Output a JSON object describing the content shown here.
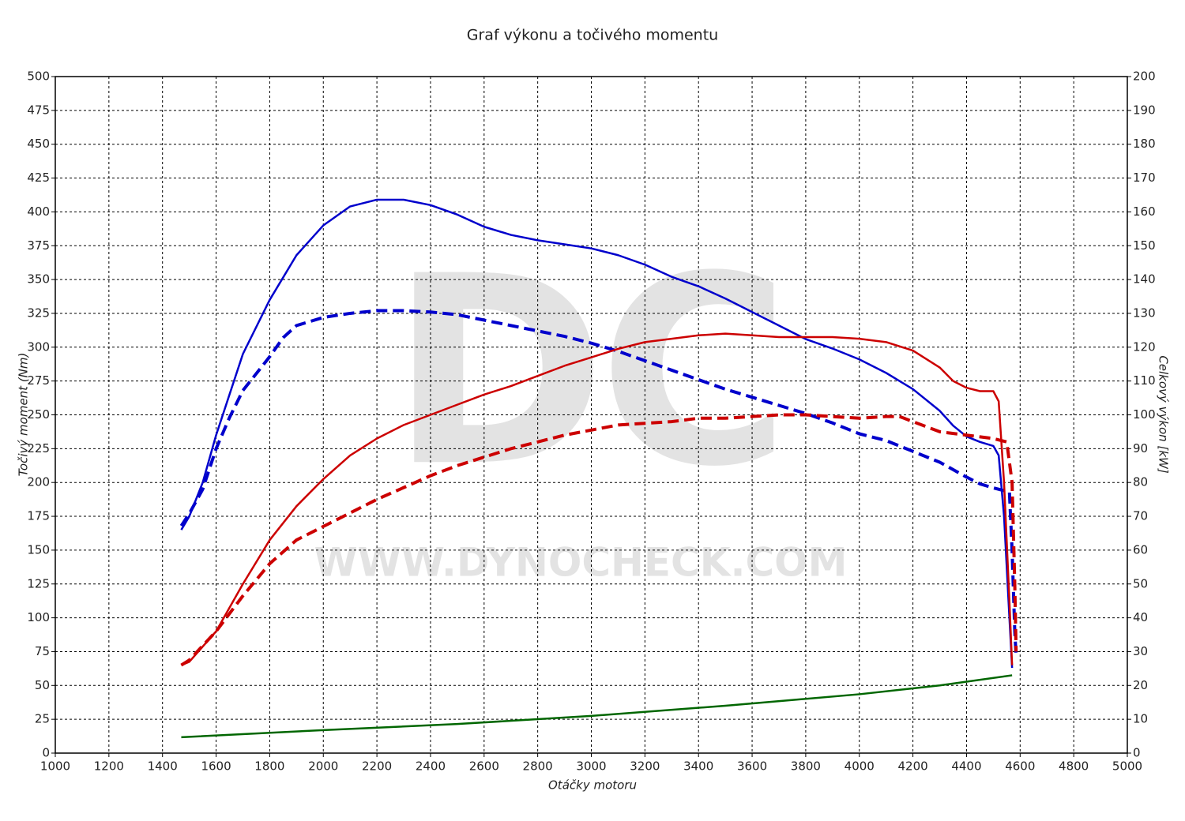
{
  "chart_data": {
    "type": "line",
    "title": "Graf výkonu a točivého momentu",
    "x_label": "Otáčky motoru",
    "y_label": "Točivý moment (Nm)",
    "y2_label": "Celkový výkon [kW]",
    "watermark": {
      "logo": "DC",
      "url": "WWW.DYNOCHECK.COM"
    },
    "grid": true,
    "xlim": [
      1000,
      5000
    ],
    "xticks": [
      1000,
      1200,
      1400,
      1600,
      1800,
      2000,
      2200,
      2400,
      2600,
      2800,
      3000,
      3200,
      3400,
      3600,
      3800,
      4000,
      4200,
      4400,
      4600,
      4800,
      5000
    ],
    "ylim": [
      0,
      500
    ],
    "yticks": [
      0,
      25,
      50,
      75,
      100,
      125,
      150,
      175,
      200,
      225,
      250,
      275,
      300,
      325,
      350,
      375,
      400,
      425,
      450,
      475,
      500
    ],
    "y2lim": [
      0,
      200
    ],
    "y2ticks": [
      0,
      10,
      20,
      30,
      40,
      50,
      60,
      70,
      80,
      90,
      100,
      110,
      120,
      130,
      140,
      150,
      160,
      170,
      180,
      190,
      200
    ],
    "series": [
      {
        "color": "#0000cc",
        "style": "solid",
        "axis": "y",
        "x": [
          1470,
          1500,
          1550,
          1600,
          1650,
          1700,
          1800,
          1900,
          2000,
          2100,
          2200,
          2300,
          2400,
          2500,
          2600,
          2700,
          2800,
          2900,
          3000,
          3100,
          3200,
          3300,
          3400,
          3500,
          3600,
          3700,
          3800,
          3900,
          4000,
          4100,
          4200,
          4300,
          4350,
          4400,
          4450,
          4500,
          4520,
          4540,
          4560,
          4570
        ],
        "values": [
          165,
          175,
          200,
          235,
          265,
          295,
          335,
          368,
          390,
          404,
          409,
          409,
          405,
          398,
          389,
          383,
          379,
          376,
          373,
          368,
          361,
          352,
          345,
          336,
          326,
          316,
          306,
          299,
          291,
          281,
          269,
          253,
          242,
          234,
          230,
          227,
          220,
          175,
          100,
          63
        ]
      },
      {
        "color": "#0000cc",
        "style": "dashed",
        "axis": "y",
        "x": [
          1470,
          1500,
          1550,
          1600,
          1650,
          1700,
          1800,
          1850,
          1900,
          2000,
          2100,
          2200,
          2300,
          2400,
          2500,
          2600,
          2700,
          2800,
          2900,
          3000,
          3100,
          3200,
          3300,
          3400,
          3500,
          3600,
          3700,
          3800,
          3900,
          4000,
          4100,
          4200,
          4300,
          4400,
          4450,
          4500,
          4560,
          4570,
          4580,
          4585
        ],
        "values": [
          168,
          177,
          195,
          225,
          248,
          268,
          293,
          307,
          316,
          322,
          325,
          327,
          327,
          326,
          324,
          320,
          316,
          312,
          308,
          303,
          297,
          290,
          283,
          276,
          269,
          263,
          257,
          251,
          244,
          236,
          231,
          223,
          215,
          204,
          199,
          196,
          193,
          150,
          90,
          72
        ]
      },
      {
        "color": "#cc0000",
        "style": "solid",
        "axis": "y2",
        "x": [
          1470,
          1500,
          1600,
          1700,
          1800,
          1900,
          2000,
          2100,
          2200,
          2300,
          2400,
          2500,
          2600,
          2700,
          2800,
          2900,
          3000,
          3100,
          3200,
          3300,
          3400,
          3500,
          3600,
          3700,
          3800,
          3900,
          4000,
          4100,
          4200,
          4300,
          4350,
          4400,
          4450,
          4500,
          4520,
          4540,
          4560,
          4570
        ],
        "values": [
          26,
          27,
          36,
          50,
          63,
          73,
          81,
          88,
          93,
          97,
          100,
          103,
          106,
          108.5,
          111.5,
          114.5,
          117,
          119.5,
          121.5,
          122.5,
          123.5,
          124,
          123.5,
          123,
          123,
          123,
          122.5,
          121.5,
          119,
          114,
          110,
          108,
          107,
          107,
          104,
          80,
          45,
          26
        ]
      },
      {
        "color": "#cc0000",
        "style": "dashed",
        "axis": "y2",
        "x": [
          1470,
          1500,
          1600,
          1700,
          1800,
          1900,
          2000,
          2100,
          2200,
          2300,
          2400,
          2500,
          2600,
          2700,
          2800,
          2900,
          3000,
          3100,
          3200,
          3300,
          3400,
          3500,
          3600,
          3700,
          3800,
          3900,
          4000,
          4100,
          4150,
          4200,
          4300,
          4400,
          4500,
          4550,
          4570,
          4580,
          4585
        ],
        "values": [
          26,
          27.5,
          36,
          46.5,
          56,
          63,
          67,
          71,
          75,
          78.5,
          82,
          85,
          87.5,
          90,
          92,
          94,
          95.5,
          97,
          97.5,
          98,
          99,
          99,
          99.5,
          100,
          100,
          99.5,
          99,
          99.5,
          99.5,
          98,
          95,
          94,
          93,
          92,
          80,
          50,
          30
        ]
      },
      {
        "color": "#006600",
        "style": "solid",
        "axis": "y2",
        "x": [
          1470,
          2000,
          2500,
          3000,
          3500,
          4000,
          4300,
          4570
        ],
        "values": [
          4.7,
          6.8,
          8.6,
          11,
          14,
          17.4,
          20,
          23
        ]
      }
    ]
  }
}
